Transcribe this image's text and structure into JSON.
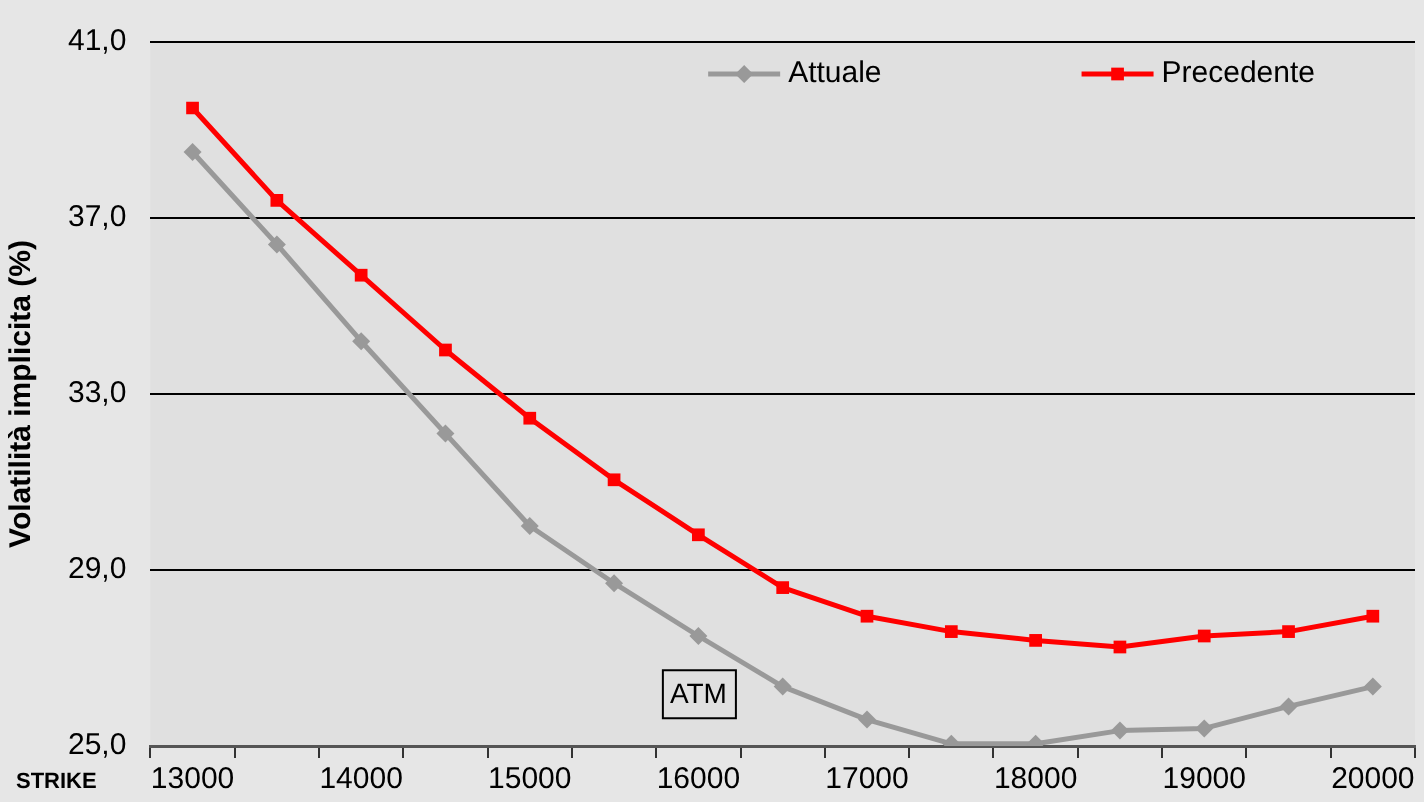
{
  "chart_data": {
    "type": "line",
    "xlabel": "STRIKE",
    "ylabel": "Volatilità implicita (%)",
    "categories": [
      "13000",
      null,
      "14000",
      null,
      "15000",
      null,
      "16000",
      null,
      "17000",
      null,
      "18000",
      null,
      "19000",
      null,
      "20000"
    ],
    "series": [
      {
        "name": "Attuale",
        "color": "#999999",
        "marker": "diamond",
        "values": [
          38.5,
          36.4,
          34.2,
          32.1,
          30.0,
          28.7,
          27.5,
          26.35,
          25.6,
          25.05,
          25.05,
          25.35,
          25.4,
          25.9,
          26.35
        ]
      },
      {
        "name": "Precedente",
        "color": "#ff0000",
        "marker": "square",
        "values": [
          39.5,
          37.4,
          35.7,
          34.0,
          32.45,
          31.05,
          29.8,
          28.6,
          27.95,
          27.6,
          27.4,
          27.25,
          27.5,
          27.6,
          27.95
        ]
      }
    ],
    "ylim": [
      25,
      41
    ],
    "yticks": [
      {
        "value": 25,
        "label": "25,0"
      },
      {
        "value": 29,
        "label": "29,0"
      },
      {
        "value": 33,
        "label": "33,0"
      },
      {
        "value": 37,
        "label": "37,0"
      },
      {
        "value": 41,
        "label": "41,0"
      }
    ],
    "grid": "y",
    "legend": "top right",
    "line_style": "solid",
    "annotations": [
      {
        "text": "ATM",
        "x": "16000",
        "y": 26.2
      }
    ]
  }
}
